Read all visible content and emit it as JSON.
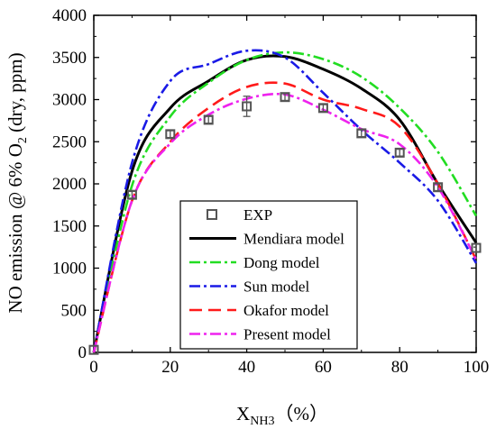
{
  "chart_data": {
    "type": "line",
    "xlabel": "X",
    "xlabel_sub": "NH3",
    "xlabel_unit": "（%）",
    "ylabel": "NO emission @ 6% O",
    "ylabel_sub": "2",
    "ylabel_unit": " (dry, ppm)",
    "xlim": [
      0,
      100
    ],
    "ylim": [
      0,
      4000
    ],
    "xticks": [
      "0",
      "20",
      "40",
      "60",
      "80",
      "100"
    ],
    "yticks": [
      "0",
      "500",
      "1000",
      "1500",
      "2000",
      "2500",
      "3000",
      "3500",
      "4000"
    ],
    "grid": false,
    "legend_position": "bottom-center",
    "experiment": {
      "name": "EXP",
      "color": "#555555",
      "x": [
        0,
        10,
        20,
        30,
        40,
        50,
        60,
        70,
        80,
        90,
        100
      ],
      "y": [
        30,
        1870,
        2590,
        2760,
        2920,
        3030,
        2900,
        2600,
        2370,
        1960,
        1240
      ],
      "err": [
        0,
        40,
        40,
        40,
        120,
        40,
        40,
        40,
        40,
        40,
        50
      ]
    },
    "series": [
      {
        "name": "Mendiara model",
        "color": "#000000",
        "dash": "",
        "x": [
          0,
          10,
          20,
          30,
          40,
          50,
          60,
          70,
          80,
          90,
          100
        ],
        "y": [
          0,
          2150,
          2900,
          3220,
          3470,
          3510,
          3360,
          3130,
          2760,
          2000,
          1300
        ]
      },
      {
        "name": "Dong model",
        "color": "#22dd22",
        "dash": "12,4,3,4",
        "x": [
          0,
          10,
          20,
          30,
          40,
          50,
          60,
          70,
          80,
          90,
          100
        ],
        "y": [
          0,
          1980,
          2800,
          3200,
          3470,
          3560,
          3480,
          3270,
          2900,
          2380,
          1620
        ]
      },
      {
        "name": "Sun model",
        "color": "#1a1ae6",
        "dash": "12,4,3,4",
        "x": [
          0,
          10,
          20,
          30,
          40,
          50,
          60,
          70,
          80,
          90,
          100
        ],
        "y": [
          0,
          2250,
          3220,
          3420,
          3580,
          3500,
          3080,
          2640,
          2250,
          1800,
          1060
        ]
      },
      {
        "name": "Okafor model",
        "color": "#ff1a1a",
        "dash": "14,7",
        "x": [
          0,
          10,
          20,
          30,
          40,
          50,
          60,
          70,
          80,
          90,
          100
        ],
        "y": [
          0,
          1800,
          2500,
          2900,
          3150,
          3190,
          3000,
          2890,
          2680,
          2000,
          1100
        ]
      },
      {
        "name": "Present model",
        "color": "#ee22ee",
        "dash": "12,4,3,4",
        "x": [
          0,
          10,
          20,
          30,
          40,
          50,
          60,
          70,
          80,
          90,
          100
        ],
        "y": [
          0,
          1800,
          2480,
          2820,
          3010,
          3060,
          2880,
          2650,
          2470,
          1960,
          1100
        ]
      }
    ]
  }
}
